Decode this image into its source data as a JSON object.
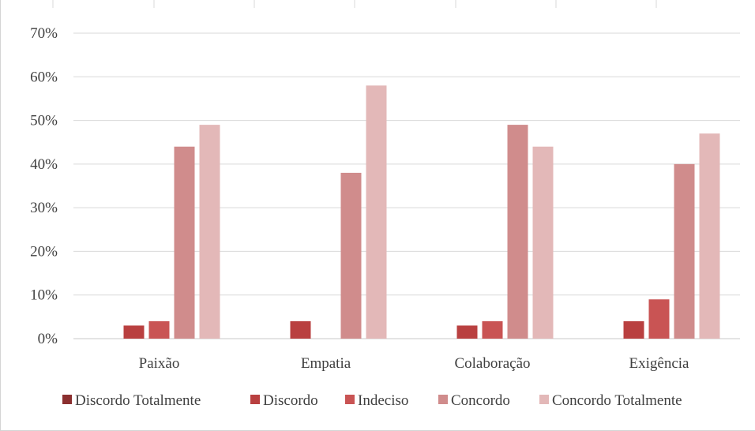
{
  "chart_data": {
    "type": "bar",
    "title": "",
    "xlabel": "",
    "ylabel": "",
    "ylim": [
      0,
      0.7
    ],
    "yticks": [
      "0%",
      "10%",
      "20%",
      "30%",
      "40%",
      "50%",
      "60%",
      "70%"
    ],
    "categories": [
      "Paixão",
      "Empatia",
      "Colaboração",
      "Exigência"
    ],
    "series": [
      {
        "name": "Discordo Totalmente",
        "color": "#8b2f2f",
        "values": [
          0.0,
          0.0,
          0.0,
          0.0
        ]
      },
      {
        "name": "Discordo",
        "color": "#b94040",
        "values": [
          0.03,
          0.04,
          0.03,
          0.04
        ]
      },
      {
        "name": "Indeciso",
        "color": "#c95454",
        "values": [
          0.04,
          0.0,
          0.04,
          0.09
        ]
      },
      {
        "name": "Concordo",
        "color": "#d08c8c",
        "values": [
          0.44,
          0.38,
          0.49,
          0.4
        ]
      },
      {
        "name": "Concordo Totalmente",
        "color": "#e3b8b8",
        "values": [
          0.49,
          0.58,
          0.44,
          0.47
        ]
      }
    ],
    "grid": true,
    "legend_position": "bottom"
  }
}
